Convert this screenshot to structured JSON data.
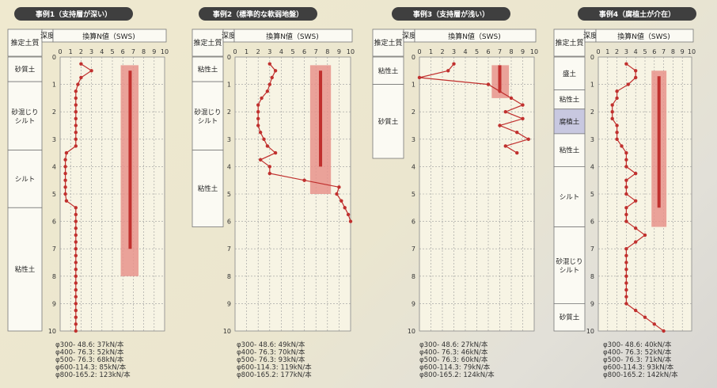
{
  "colors": {
    "title_bg": "#3f3f3f",
    "grid": "#9a9a9a",
    "data": "#c0302e",
    "pile_fill": "#e8938c",
    "pile_line": "#c0302e",
    "highlight_layer": "#c8c8e0"
  },
  "chart_data": [
    {
      "type": "line",
      "title": "事例1（支持層が深い）",
      "header_soil": "推定土質",
      "header_depth": "深度",
      "header_value": "換算N値（SWS)",
      "x_ticks": [
        0,
        1,
        2,
        3,
        4,
        5,
        6,
        7,
        8,
        9,
        10
      ],
      "y_ticks": [
        0,
        1,
        2,
        3,
        4,
        5,
        6,
        7,
        8,
        9,
        10
      ],
      "xlim": [
        0,
        10
      ],
      "ylim": [
        0,
        10
      ],
      "series": [
        {
          "depth": [
            0.25,
            0.5,
            0.75,
            1.0,
            1.25,
            1.5,
            1.75,
            2.0,
            2.25,
            2.5,
            2.75,
            3.0,
            3.25,
            3.5,
            3.75,
            4.0,
            4.25,
            4.5,
            4.75,
            5.0,
            5.25,
            5.5,
            5.75,
            6.0,
            6.25,
            6.5,
            6.75,
            7.0,
            7.25,
            7.5,
            7.75,
            8.0,
            8.25,
            8.5,
            8.75,
            9.0,
            9.25,
            9.5,
            9.75,
            10.0
          ],
          "n": [
            2.0,
            3.0,
            2.0,
            1.7,
            1.5,
            1.5,
            1.5,
            1.5,
            1.5,
            1.5,
            1.5,
            1.5,
            1.5,
            0.6,
            0.5,
            0.5,
            0.5,
            0.5,
            0.5,
            0.5,
            0.6,
            1.5,
            1.5,
            1.5,
            1.5,
            1.5,
            1.5,
            1.5,
            1.5,
            1.5,
            1.5,
            1.5,
            1.5,
            1.5,
            1.5,
            1.5,
            1.5,
            1.5,
            1.5,
            1.5
          ]
        }
      ],
      "pile": {
        "x_from": 5.8,
        "x_to": 7.5,
        "top": 0.3,
        "bottom": 8.0,
        "line_x": 6.7,
        "line_top": 0.5,
        "line_bottom": 7.0
      },
      "soil_layers": [
        {
          "name": "砂質土",
          "top": 0.0,
          "bottom": 0.9,
          "highlight": false
        },
        {
          "name": "砂混じり\nシルト",
          "top": 0.9,
          "bottom": 3.4,
          "highlight": false
        },
        {
          "name": "シルト",
          "top": 3.4,
          "bottom": 5.5,
          "highlight": false
        },
        {
          "name": "粘性土",
          "top": 5.5,
          "bottom": 10.0,
          "highlight": false
        }
      ],
      "footer": [
        "φ300-  48.6:   37kN/本",
        "φ400-  76.3:   52kN/本",
        "φ500-  76.3:   68kN/本",
        "φ600-114.3:   85kN/本",
        "φ800-165.2: 123kN/本"
      ]
    },
    {
      "type": "line",
      "title": "事例2（標準的な軟弱地盤）",
      "header_soil": "推定土質",
      "header_depth": "深度",
      "header_value": "換算N値（SWS)",
      "x_ticks": [
        0,
        1,
        2,
        3,
        4,
        5,
        6,
        7,
        8,
        9,
        10
      ],
      "y_ticks": [
        0,
        1,
        2,
        3,
        4,
        5,
        6,
        7,
        8,
        9,
        10
      ],
      "xlim": [
        0,
        10
      ],
      "ylim": [
        0,
        10
      ],
      "series": [
        {
          "depth": [
            0.25,
            0.5,
            0.75,
            1.0,
            1.25,
            1.5,
            1.75,
            2.0,
            2.25,
            2.5,
            2.75,
            3.0,
            3.25,
            3.5,
            3.75,
            4.0,
            4.25,
            4.5,
            4.75,
            5.0,
            5.25,
            5.5,
            5.75,
            6.0
          ],
          "n": [
            3.0,
            3.5,
            3.2,
            3.0,
            2.8,
            2.3,
            2.0,
            2.0,
            2.0,
            2.0,
            2.2,
            2.5,
            2.8,
            3.5,
            2.2,
            3.0,
            3.0,
            6.0,
            9.0,
            8.8,
            9.2,
            9.5,
            9.8,
            10.0
          ]
        }
      ],
      "pile": {
        "x_from": 6.5,
        "x_to": 8.3,
        "top": 0.3,
        "bottom": 5.0,
        "line_x": 7.4,
        "line_top": 0.5,
        "line_bottom": 4.0
      },
      "soil_layers": [
        {
          "name": "粘性土",
          "top": 0.0,
          "bottom": 0.9,
          "highlight": false
        },
        {
          "name": "砂混じり\nシルト",
          "top": 0.9,
          "bottom": 3.4,
          "highlight": false
        },
        {
          "name": "粘性土",
          "top": 3.4,
          "bottom": 6.2,
          "highlight": false
        }
      ],
      "footer": [
        "φ300-  48.6:   49kN/本",
        "φ400-  76.3:   70kN/本",
        "φ500-  76.3:   93kN/本",
        "φ600-114.3: 119kN/本",
        "φ800-165.2: 177kN/本"
      ]
    },
    {
      "type": "line",
      "title": "事例3（支持層が浅い）",
      "header_soil": "推定土質",
      "header_depth": "深度",
      "header_value": "換算N値（SWS)",
      "x_ticks": [
        0,
        1,
        2,
        3,
        4,
        5,
        6,
        7,
        8,
        9,
        10
      ],
      "y_ticks": [
        0,
        1,
        2,
        3,
        4,
        5,
        6,
        7,
        8,
        9,
        10
      ],
      "xlim": [
        0,
        10
      ],
      "ylim": [
        0,
        10
      ],
      "series": [
        {
          "depth": [
            0.25,
            0.5,
            0.75,
            1.0,
            1.25,
            1.5,
            1.75,
            2.0,
            2.25,
            2.5,
            2.75,
            3.0,
            3.25,
            3.5
          ],
          "n": [
            3.0,
            2.5,
            0.0,
            6.0,
            7.0,
            8.0,
            9.0,
            7.5,
            9.0,
            7.0,
            8.5,
            9.5,
            7.5,
            8.5
          ]
        }
      ],
      "pile": {
        "x_from": 6.3,
        "x_to": 7.8,
        "top": 0.3,
        "bottom": 1.5,
        "line_x": 7.0,
        "line_top": 0.3,
        "line_bottom": 1.2
      },
      "soil_layers": [
        {
          "name": "粘性土",
          "top": 0.0,
          "bottom": 1.0,
          "highlight": false
        },
        {
          "name": "砂質土",
          "top": 1.0,
          "bottom": 3.7,
          "highlight": false
        }
      ],
      "footer": [
        "φ300-  48.6:   27kN/本",
        "φ400-  76.3:   46kN/本",
        "φ500-  76.3:   60kN/本",
        "φ600-114.3:   79kN/本",
        "φ800-165.2: 124kN/本"
      ]
    },
    {
      "type": "line",
      "title": "事例4（腐植土が介在）",
      "header_soil": "推定土質",
      "header_depth": "深度",
      "header_value": "換算N値（SWS)",
      "x_ticks": [
        0,
        1,
        2,
        3,
        4,
        5,
        6,
        7,
        8,
        9,
        10
      ],
      "y_ticks": [
        0,
        1,
        2,
        3,
        4,
        5,
        6,
        7,
        8,
        9,
        10
      ],
      "xlim": [
        0,
        10
      ],
      "ylim": [
        0,
        10
      ],
      "series": [
        {
          "depth": [
            0.25,
            0.5,
            0.75,
            1.0,
            1.25,
            1.5,
            1.75,
            2.0,
            2.25,
            2.5,
            2.75,
            3.0,
            3.25,
            3.5,
            3.75,
            4.0,
            4.25,
            4.5,
            4.75,
            5.0,
            5.25,
            5.5,
            5.75,
            6.0,
            6.25,
            6.5,
            6.75,
            7.0,
            7.25,
            7.5,
            7.75,
            8.0,
            8.25,
            8.5,
            8.75,
            9.0,
            9.25,
            9.5,
            9.75,
            10.0
          ],
          "n": [
            3.0,
            4.0,
            4.0,
            3.2,
            2.0,
            2.0,
            1.5,
            1.5,
            1.5,
            2.0,
            2.0,
            2.0,
            2.5,
            3.0,
            3.0,
            3.0,
            4.0,
            3.0,
            3.0,
            3.0,
            4.0,
            3.0,
            3.0,
            3.0,
            4.0,
            5.0,
            4.0,
            3.0,
            3.0,
            3.0,
            3.0,
            3.0,
            3.0,
            3.0,
            3.0,
            3.0,
            4.0,
            5.0,
            6.0,
            7.0
          ]
        }
      ],
      "pile": {
        "x_from": 5.7,
        "x_to": 7.3,
        "top": 0.5,
        "bottom": 6.2,
        "line_x": 6.5,
        "line_top": 0.7,
        "line_bottom": 5.5
      },
      "soil_layers": [
        {
          "name": "盛土",
          "top": 0.0,
          "bottom": 1.2,
          "highlight": false
        },
        {
          "name": "粘性土",
          "top": 1.2,
          "bottom": 1.9,
          "highlight": false
        },
        {
          "name": "腐植土",
          "top": 1.9,
          "bottom": 2.8,
          "highlight": true
        },
        {
          "name": "粘性土",
          "top": 2.8,
          "bottom": 4.0,
          "highlight": false
        },
        {
          "name": "シルト",
          "top": 4.0,
          "bottom": 6.2,
          "highlight": false
        },
        {
          "name": "砂混じり\nシルト",
          "top": 6.2,
          "bottom": 9.0,
          "highlight": false
        },
        {
          "name": "砂質土",
          "top": 9.0,
          "bottom": 10.0,
          "highlight": false
        }
      ],
      "footer": [
        "φ300-  48.6:   40kN/本",
        "φ400-  76.3:   52kN/本",
        "φ500-  76.3:   71kN/本",
        "φ600-114.3:   93kN/本",
        "φ800-165.2: 142kN/本"
      ]
    }
  ]
}
